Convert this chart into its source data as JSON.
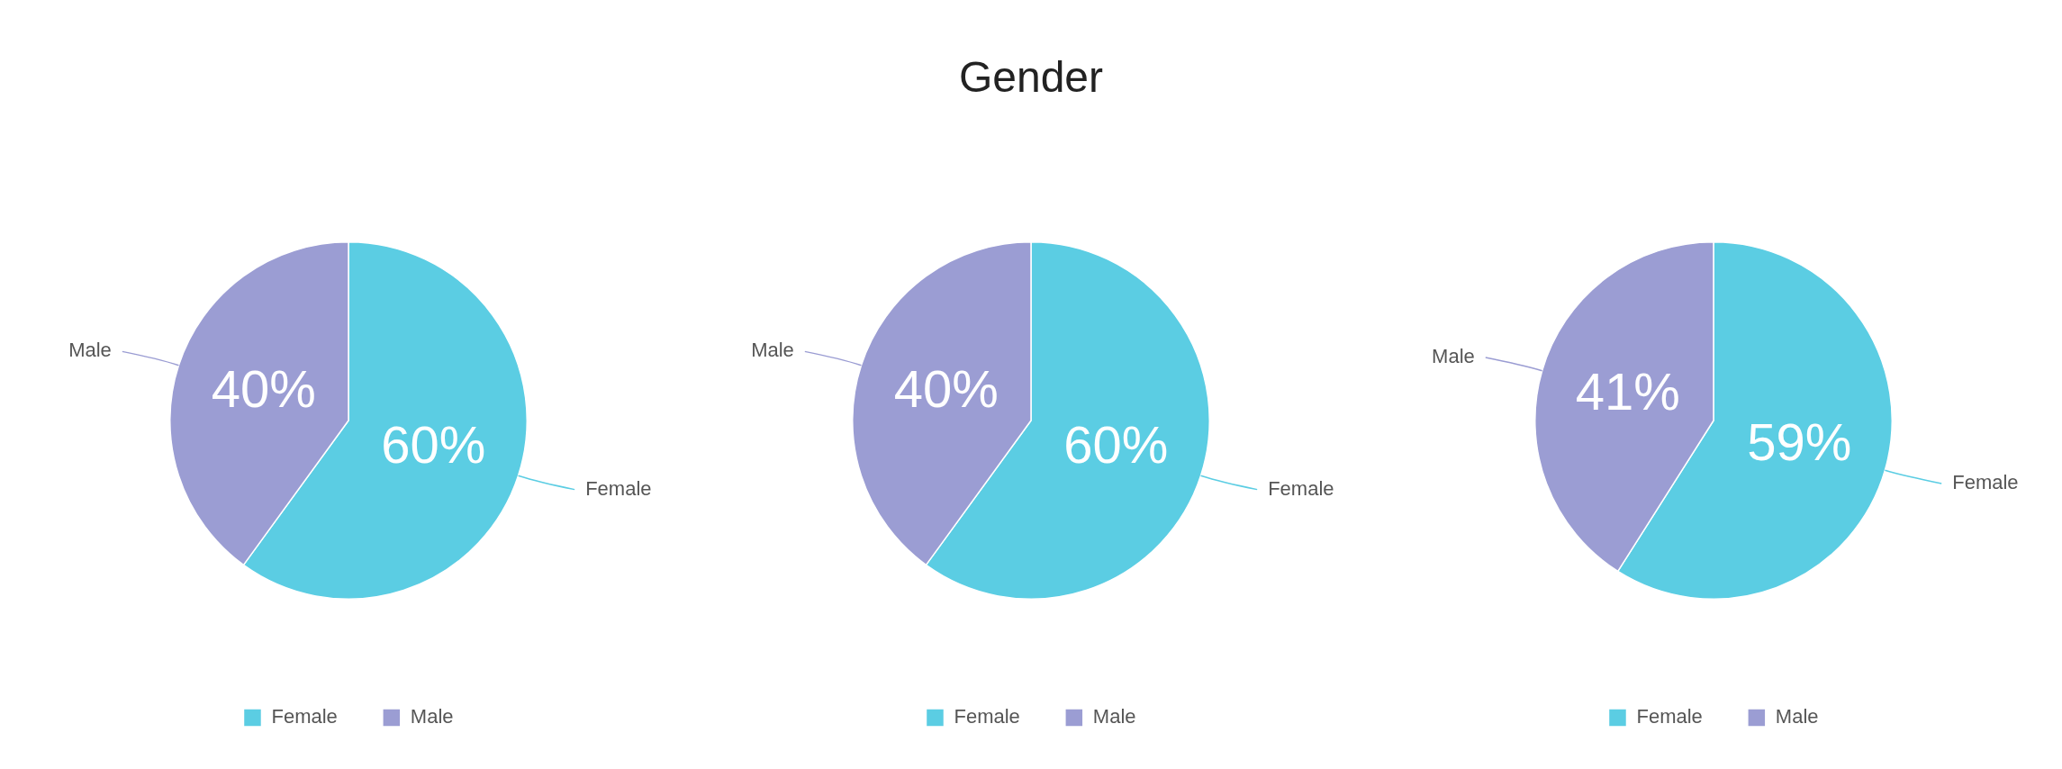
{
  "chart_data": [
    {
      "type": "pie",
      "categories": [
        "Female",
        "Male"
      ],
      "values": [
        60,
        40
      ],
      "colors": [
        "#5bcde3",
        "#9b9dd3"
      ],
      "value_labels": [
        "60%",
        "40%"
      ],
      "legend": "bottom"
    },
    {
      "type": "pie",
      "title": "Gender",
      "categories": [
        "Female",
        "Male"
      ],
      "values": [
        60,
        40
      ],
      "colors": [
        "#5bcde3",
        "#9b9dd3"
      ],
      "value_labels": [
        "60%",
        "40%"
      ],
      "legend": "bottom"
    },
    {
      "type": "pie",
      "categories": [
        "Female",
        "Male"
      ],
      "values": [
        59,
        41
      ],
      "colors": [
        "#5bcde3",
        "#9b9dd3"
      ],
      "value_labels": [
        "59%",
        "41%"
      ],
      "legend": "bottom"
    }
  ]
}
